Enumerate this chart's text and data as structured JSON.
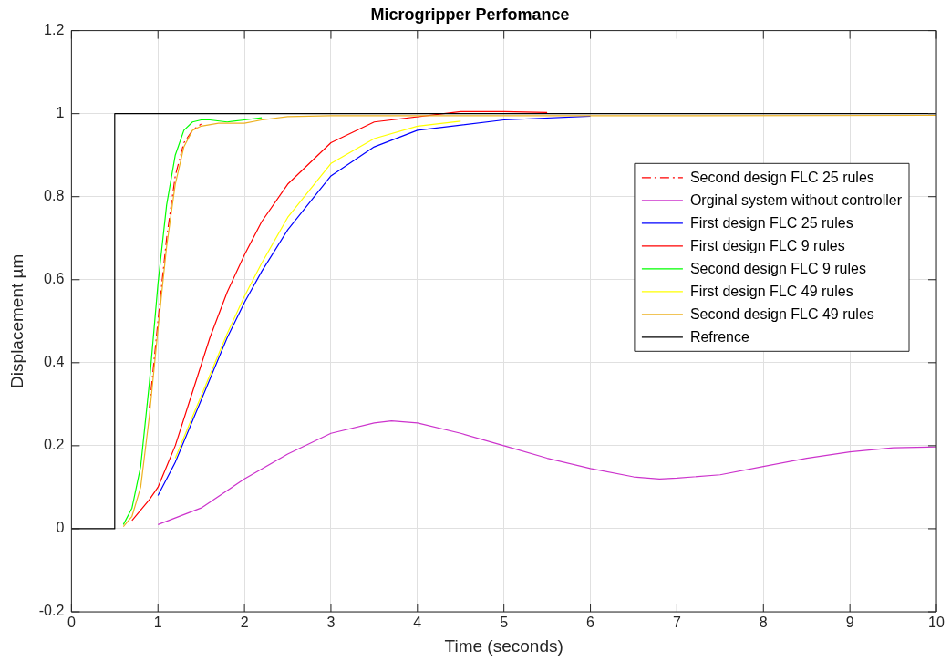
{
  "chart_data": {
    "type": "line",
    "title": "Microgripper Perfomance",
    "xlabel": "Time (seconds)",
    "ylabel": "Displacement µm",
    "xlim": [
      0,
      10
    ],
    "xticks": [
      0,
      1,
      2,
      3,
      4,
      5,
      6,
      7,
      8,
      9,
      10
    ],
    "ylim": [
      -0.2,
      1.2
    ],
    "yticks": [
      -0.2,
      0,
      0.2,
      0.4,
      0.6,
      0.8,
      1,
      1.2
    ],
    "grid": true,
    "legend": "right",
    "marker": "none",
    "series": [
      {
        "name": "Second design FLC 25 rules",
        "color": "#ff0000",
        "line_style": "dashed",
        "x": [
          0.9,
          1.0,
          1.1,
          1.2,
          1.3,
          1.4,
          1.5
        ],
        "values": [
          0.29,
          0.5,
          0.7,
          0.85,
          0.93,
          0.96,
          0.975
        ]
      },
      {
        "name": "Orginal system without controller",
        "color": "#cc33cc",
        "x": [
          1.0,
          1.5,
          2.0,
          2.5,
          3.0,
          3.5,
          3.7,
          4.0,
          4.5,
          5.0,
          5.5,
          6.0,
          6.5,
          6.8,
          7.0,
          7.5,
          8.0,
          8.5,
          9.0,
          9.5,
          10
        ],
        "values": [
          0.01,
          0.05,
          0.12,
          0.18,
          0.23,
          0.255,
          0.26,
          0.255,
          0.23,
          0.2,
          0.17,
          0.145,
          0.125,
          0.12,
          0.122,
          0.13,
          0.15,
          0.17,
          0.185,
          0.195,
          0.197
        ]
      },
      {
        "name": "First design FLC 25 rules",
        "color": "#0000ff",
        "x": [
          1.0,
          1.2,
          1.4,
          1.6,
          1.8,
          2.0,
          2.2,
          2.5,
          3.0,
          3.5,
          4.0,
          5,
          6
        ],
        "values": [
          0.08,
          0.16,
          0.26,
          0.36,
          0.46,
          0.545,
          0.62,
          0.72,
          0.85,
          0.92,
          0.96,
          0.985,
          0.994
        ]
      },
      {
        "name": "First design FLC 9 rules",
        "color": "#ff0000",
        "x": [
          0.7,
          0.9,
          1.0,
          1.2,
          1.4,
          1.6,
          1.8,
          2.0,
          2.2,
          2.5,
          3.0,
          3.5,
          4.5,
          5,
          5.5
        ],
        "values": [
          0.02,
          0.07,
          0.1,
          0.2,
          0.33,
          0.46,
          0.57,
          0.66,
          0.74,
          0.83,
          0.93,
          0.98,
          1.005,
          1.005,
          1.003
        ]
      },
      {
        "name": "Second design FLC 9 rules",
        "color": "#00ff00",
        "x": [
          0.6,
          0.7,
          0.8,
          0.9,
          1.0,
          1.1,
          1.2,
          1.3,
          1.4,
          1.5,
          1.6,
          1.8,
          2.0,
          2.2
        ],
        "values": [
          0.01,
          0.05,
          0.15,
          0.35,
          0.59,
          0.78,
          0.9,
          0.96,
          0.98,
          0.985,
          0.985,
          0.98,
          0.985,
          0.99
        ]
      },
      {
        "name": "First design FLC 49 rules",
        "color": "#ffff00",
        "x": [
          1.2,
          1.4,
          1.6,
          1.8,
          2.0,
          2.2,
          2.5,
          3.0,
          3.5,
          4.0,
          4.5
        ],
        "values": [
          0.17,
          0.27,
          0.37,
          0.47,
          0.56,
          0.64,
          0.75,
          0.88,
          0.94,
          0.97,
          0.982
        ]
      },
      {
        "name": "Second design FLC 49 rules",
        "color": "#edb120",
        "x": [
          0.6,
          0.7,
          0.8,
          0.9,
          1.0,
          1.1,
          1.2,
          1.3,
          1.4,
          1.5,
          1.7,
          2.0,
          2.2,
          2.5,
          3,
          6,
          10
        ],
        "values": [
          0.005,
          0.03,
          0.1,
          0.27,
          0.48,
          0.68,
          0.83,
          0.92,
          0.96,
          0.97,
          0.977,
          0.977,
          0.985,
          0.993,
          0.995,
          0.995,
          0.996
        ]
      },
      {
        "name": "Refrence",
        "color": "#000000",
        "x": [
          0,
          0.5,
          0.5,
          10
        ],
        "values": [
          0,
          0,
          1,
          1
        ]
      }
    ]
  }
}
